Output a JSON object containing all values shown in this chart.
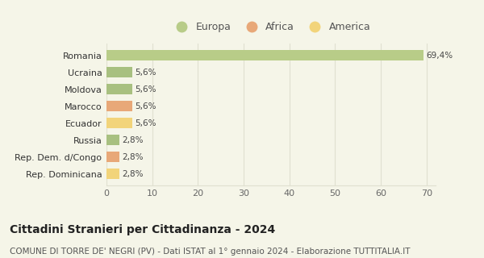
{
  "categories": [
    "Rep. Dominicana",
    "Rep. Dem. d/Congo",
    "Russia",
    "Ecuador",
    "Marocco",
    "Moldova",
    "Ucraina",
    "Romania"
  ],
  "values": [
    2.8,
    2.8,
    2.8,
    5.6,
    5.6,
    5.6,
    5.6,
    69.4
  ],
  "colors": [
    "#f2d47a",
    "#e8a878",
    "#a8c080",
    "#f2d47a",
    "#e8a878",
    "#a8c080",
    "#a8c080",
    "#b8cc88"
  ],
  "labels": [
    "2,8%",
    "2,8%",
    "2,8%",
    "5,6%",
    "5,6%",
    "5,6%",
    "5,6%",
    "69,4%"
  ],
  "legend": [
    {
      "label": "Europa",
      "color": "#b8cc88"
    },
    {
      "label": "Africa",
      "color": "#e8a878"
    },
    {
      "label": "America",
      "color": "#f2d47a"
    }
  ],
  "xlim": [
    0,
    72
  ],
  "xticks": [
    0,
    10,
    20,
    30,
    40,
    50,
    60,
    70
  ],
  "title": "Cittadini Stranieri per Cittadinanza - 2024",
  "subtitle": "COMUNE DI TORRE DE' NEGRI (PV) - Dati ISTAT al 1° gennaio 2024 - Elaborazione TUTTITALIA.IT",
  "title_fontsize": 10,
  "subtitle_fontsize": 7.5,
  "background_color": "#f5f5e8",
  "grid_color": "#e0e0d0"
}
